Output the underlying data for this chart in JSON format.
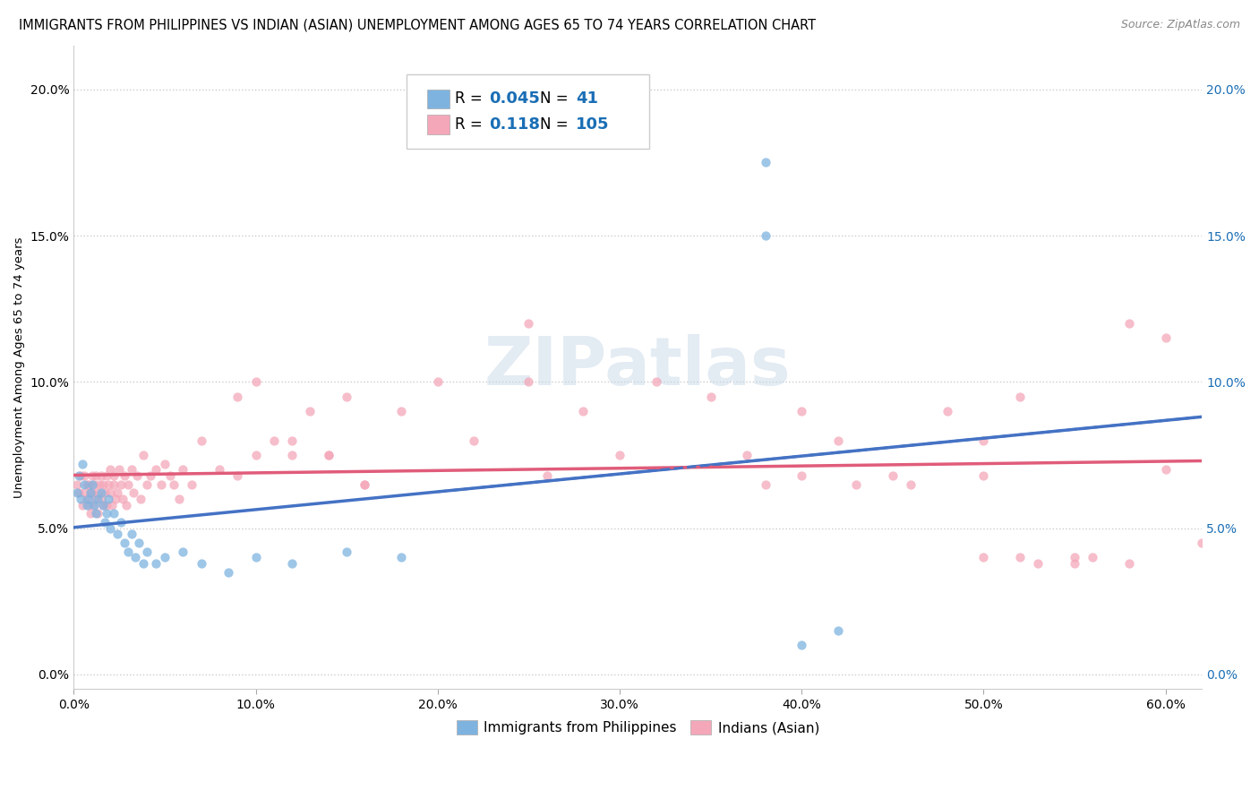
{
  "title": "IMMIGRANTS FROM PHILIPPINES VS INDIAN (ASIAN) UNEMPLOYMENT AMONG AGES 65 TO 74 YEARS CORRELATION CHART",
  "source": "Source: ZipAtlas.com",
  "ylabel": "Unemployment Among Ages 65 to 74 years",
  "xlim": [
    0.0,
    0.62
  ],
  "ylim": [
    -0.005,
    0.215
  ],
  "philippines_R": 0.045,
  "philippines_N": 41,
  "indians_R": 0.118,
  "indians_N": 105,
  "philippines_color": "#7eb3e0",
  "indians_color": "#f4a7b9",
  "philippines_line_color": "#4472c4",
  "indians_line_color": "#e05c7a",
  "watermark": "ZIPatlas",
  "philippines_x": [
    0.002,
    0.003,
    0.004,
    0.005,
    0.006,
    0.007,
    0.008,
    0.009,
    0.01,
    0.011,
    0.012,
    0.013,
    0.015,
    0.016,
    0.017,
    0.018,
    0.019,
    0.02,
    0.022,
    0.024,
    0.026,
    0.028,
    0.03,
    0.032,
    0.034,
    0.036,
    0.038,
    0.04,
    0.045,
    0.05,
    0.06,
    0.07,
    0.085,
    0.1,
    0.12,
    0.15,
    0.18,
    0.38,
    0.38,
    0.4,
    0.42
  ],
  "philippines_y": [
    0.062,
    0.068,
    0.06,
    0.072,
    0.065,
    0.058,
    0.06,
    0.062,
    0.065,
    0.058,
    0.055,
    0.06,
    0.062,
    0.058,
    0.052,
    0.055,
    0.06,
    0.05,
    0.055,
    0.048,
    0.052,
    0.045,
    0.042,
    0.048,
    0.04,
    0.045,
    0.038,
    0.042,
    0.038,
    0.04,
    0.042,
    0.038,
    0.035,
    0.04,
    0.038,
    0.042,
    0.04,
    0.175,
    0.15,
    0.01,
    0.015
  ],
  "indians_x": [
    0.002,
    0.003,
    0.004,
    0.005,
    0.006,
    0.006,
    0.007,
    0.007,
    0.008,
    0.008,
    0.009,
    0.009,
    0.01,
    0.01,
    0.011,
    0.011,
    0.012,
    0.012,
    0.013,
    0.013,
    0.014,
    0.015,
    0.015,
    0.016,
    0.016,
    0.017,
    0.018,
    0.018,
    0.019,
    0.02,
    0.02,
    0.021,
    0.022,
    0.022,
    0.023,
    0.024,
    0.025,
    0.026,
    0.027,
    0.028,
    0.029,
    0.03,
    0.032,
    0.033,
    0.035,
    0.037,
    0.038,
    0.04,
    0.042,
    0.045,
    0.048,
    0.05,
    0.053,
    0.055,
    0.058,
    0.06,
    0.065,
    0.07,
    0.08,
    0.09,
    0.1,
    0.11,
    0.12,
    0.13,
    0.14,
    0.15,
    0.16,
    0.18,
    0.2,
    0.22,
    0.25,
    0.28,
    0.3,
    0.32,
    0.35,
    0.37,
    0.4,
    0.42,
    0.45,
    0.48,
    0.5,
    0.52,
    0.55,
    0.58,
    0.6,
    0.38,
    0.4,
    0.43,
    0.46,
    0.5,
    0.52,
    0.55,
    0.09,
    0.1,
    0.12,
    0.14,
    0.16,
    0.5,
    0.53,
    0.56,
    0.58,
    0.6,
    0.62,
    0.25,
    0.26
  ],
  "indians_y": [
    0.065,
    0.062,
    0.068,
    0.058,
    0.062,
    0.068,
    0.06,
    0.065,
    0.058,
    0.065,
    0.062,
    0.055,
    0.068,
    0.062,
    0.058,
    0.065,
    0.06,
    0.068,
    0.055,
    0.062,
    0.065,
    0.068,
    0.06,
    0.058,
    0.065,
    0.062,
    0.068,
    0.058,
    0.065,
    0.062,
    0.07,
    0.058,
    0.065,
    0.068,
    0.06,
    0.062,
    0.07,
    0.065,
    0.06,
    0.068,
    0.058,
    0.065,
    0.07,
    0.062,
    0.068,
    0.06,
    0.075,
    0.065,
    0.068,
    0.07,
    0.065,
    0.072,
    0.068,
    0.065,
    0.06,
    0.07,
    0.065,
    0.08,
    0.07,
    0.068,
    0.075,
    0.08,
    0.075,
    0.09,
    0.075,
    0.095,
    0.065,
    0.09,
    0.1,
    0.08,
    0.1,
    0.09,
    0.075,
    0.1,
    0.095,
    0.075,
    0.09,
    0.08,
    0.068,
    0.09,
    0.08,
    0.095,
    0.04,
    0.12,
    0.115,
    0.065,
    0.068,
    0.065,
    0.065,
    0.068,
    0.04,
    0.038,
    0.095,
    0.1,
    0.08,
    0.075,
    0.065,
    0.04,
    0.038,
    0.04,
    0.038,
    0.07,
    0.045,
    0.12,
    0.068
  ],
  "legend_label_ph": "Immigrants from Philippines",
  "legend_label_ind": "Indians (Asian)"
}
